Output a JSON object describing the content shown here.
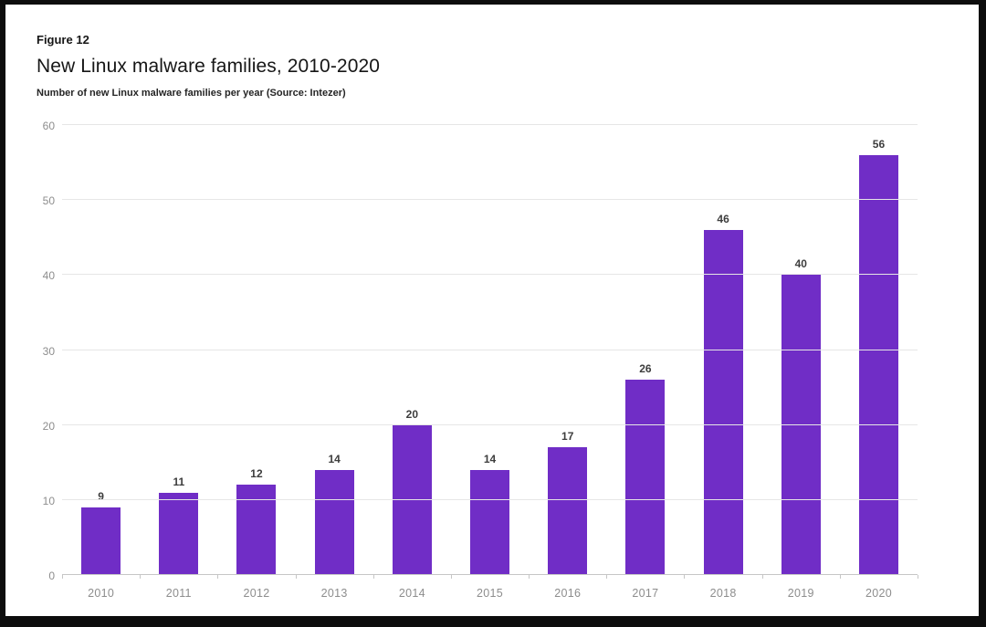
{
  "frame": {
    "background_color": "#0d0d0d",
    "page_background_color": "#ffffff"
  },
  "chart_data": {
    "type": "bar",
    "figure_label": "Figure 12",
    "title": "New Linux malware families, 2010-2020",
    "subtitle": "Number of new Linux malware families per year (Source: Intezer)",
    "categories": [
      "2010",
      "2011",
      "2012",
      "2013",
      "2014",
      "2015",
      "2016",
      "2017",
      "2018",
      "2019",
      "2020"
    ],
    "values": [
      9,
      11,
      12,
      14,
      20,
      14,
      17,
      26,
      46,
      40,
      56
    ],
    "xlabel": "",
    "ylabel": "",
    "ylim": [
      0,
      60
    ],
    "yticks": [
      0,
      10,
      20,
      30,
      40,
      50,
      60
    ],
    "grid": true,
    "legend_position": "none",
    "value_labels_shown": true,
    "bar_color": "#702dc6",
    "value_label_color": "#3d3d3d",
    "axis_label_color": "#8d8d8d",
    "gridline_color": "#e6e6e6",
    "baseline_color": "#c6c6c6"
  }
}
